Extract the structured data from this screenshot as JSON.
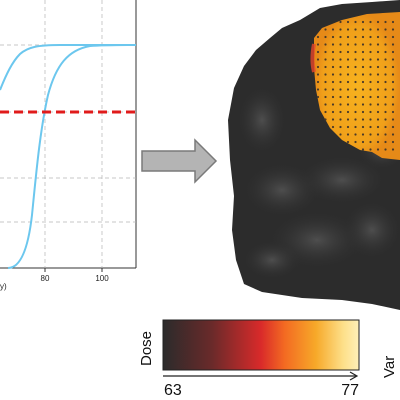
{
  "plot": {
    "x_ticks": [
      "80",
      "100"
    ],
    "x_label_fragment": "y)",
    "line_color": "#6cc7ee",
    "threshold_color": "#e01b1b"
  },
  "colorbar": {
    "left_label": "Dose",
    "right_label": "Var",
    "min_label": "63",
    "max_label": "77",
    "gradient": [
      "#2b2b2b",
      "#6a2a2a",
      "#d92a2a",
      "#f36a22",
      "#f7a929",
      "#fde08a",
      "#fff0b8"
    ]
  },
  "dose_map": {
    "hot_color": "#f2a41a",
    "cold_color": "#2c2c2c"
  }
}
